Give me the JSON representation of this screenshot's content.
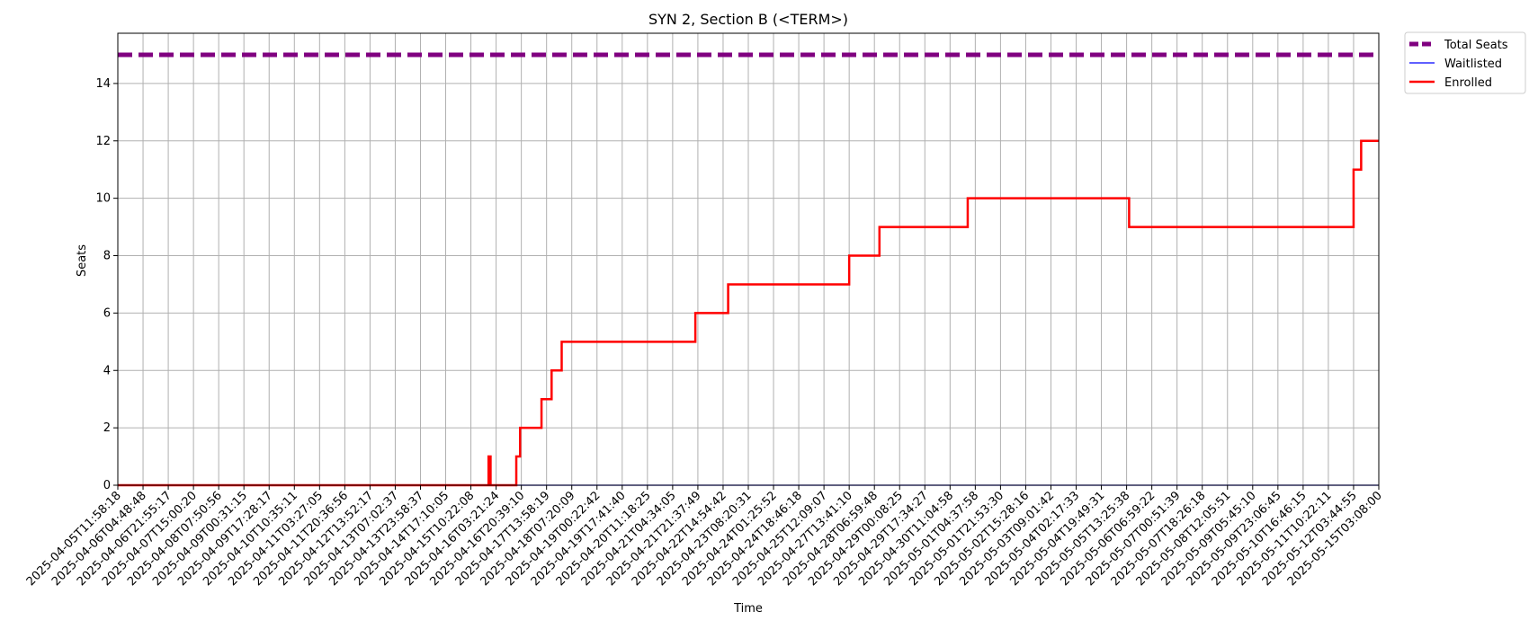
{
  "chart_data": {
    "type": "line",
    "title": "SYN 2, Section B (<TERM>)",
    "xlabel": "Time",
    "ylabel": "Seats",
    "ylim": [
      0,
      15.75
    ],
    "yticks": [
      0,
      2,
      4,
      6,
      8,
      10,
      12,
      14
    ],
    "grid": true,
    "legend_position": "outside top-right",
    "x_ticks": [
      "2025-04-05T11:58:18",
      "2025-04-06T04:48:48",
      "2025-04-06T21:55:17",
      "2025-04-07T15:00:20",
      "2025-04-08T07:50:56",
      "2025-04-09T00:31:15",
      "2025-04-09T17:28:17",
      "2025-04-10T10:35:11",
      "2025-04-11T03:27:05",
      "2025-04-11T20:36:56",
      "2025-04-12T13:52:17",
      "2025-04-13T07:02:37",
      "2025-04-13T23:58:37",
      "2025-04-14T17:10:05",
      "2025-04-15T10:22:08",
      "2025-04-16T03:21:24",
      "2025-04-16T20:39:10",
      "2025-04-17T13:58:19",
      "2025-04-18T07:20:09",
      "2025-04-19T00:22:42",
      "2025-04-19T17:41:40",
      "2025-04-20T11:18:25",
      "2025-04-21T04:34:05",
      "2025-04-21T21:37:49",
      "2025-04-22T14:54:42",
      "2025-04-23T08:20:31",
      "2025-04-24T01:25:52",
      "2025-04-24T18:46:18",
      "2025-04-25T12:09:07",
      "2025-04-27T13:41:10",
      "2025-04-28T06:59:48",
      "2025-04-29T00:08:25",
      "2025-04-29T17:34:27",
      "2025-04-30T11:04:58",
      "2025-05-01T04:37:58",
      "2025-05-01T21:53:30",
      "2025-05-02T15:28:16",
      "2025-05-03T09:01:42",
      "2025-05-04T02:17:33",
      "2025-05-04T19:49:31",
      "2025-05-05T13:25:38",
      "2025-05-06T06:59:22",
      "2025-05-07T00:51:39",
      "2025-05-07T18:26:18",
      "2025-05-08T12:05:51",
      "2025-05-09T05:45:10",
      "2025-05-09T23:06:45",
      "2025-05-10T16:46:15",
      "2025-05-11T10:22:11",
      "2025-05-12T03:44:55",
      "2025-05-15T03:08:00"
    ],
    "series": [
      {
        "name": "Total Seats",
        "color": "#800080",
        "style": "dashed",
        "step_points": [
          [
            0,
            15
          ],
          [
            50,
            15
          ]
        ]
      },
      {
        "name": "Waitlisted",
        "color": "#0000ff",
        "style": "solid",
        "step_points": [
          [
            0,
            0
          ],
          [
            50,
            0
          ]
        ]
      },
      {
        "name": "Enrolled",
        "color": "#ff0000",
        "style": "solid",
        "step_points": [
          [
            0,
            0
          ],
          [
            14.7,
            0
          ],
          [
            14.7,
            1
          ],
          [
            14.78,
            1
          ],
          [
            14.78,
            0
          ],
          [
            15.8,
            0
          ],
          [
            15.8,
            1
          ],
          [
            15.95,
            1
          ],
          [
            15.95,
            2
          ],
          [
            16.8,
            2
          ],
          [
            16.8,
            3
          ],
          [
            17.2,
            3
          ],
          [
            17.2,
            4
          ],
          [
            17.6,
            4
          ],
          [
            17.6,
            5
          ],
          [
            22.9,
            5
          ],
          [
            22.9,
            6
          ],
          [
            24.2,
            6
          ],
          [
            24.2,
            7
          ],
          [
            29.0,
            7
          ],
          [
            29.0,
            8
          ],
          [
            30.2,
            8
          ],
          [
            30.2,
            9
          ],
          [
            33.7,
            9
          ],
          [
            33.7,
            10
          ],
          [
            40.1,
            10
          ],
          [
            40.1,
            9
          ],
          [
            49.0,
            9
          ],
          [
            49.0,
            11
          ],
          [
            49.3,
            11
          ],
          [
            49.3,
            12
          ],
          [
            50,
            12
          ]
        ]
      }
    ]
  }
}
